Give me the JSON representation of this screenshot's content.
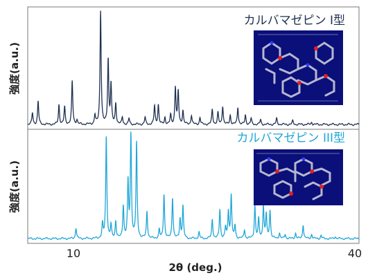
{
  "chart_data": {
    "type": "line",
    "xlabel": "2θ (deg.)",
    "xlim": [
      5,
      40
    ],
    "x_ticks": [
      "10",
      "40"
    ],
    "panels": [
      {
        "title": "カルバマゼピン I型",
        "ylabel": "強度(a.u.)",
        "color": "#1f3050",
        "series": [
          {
            "peaks": [
              {
                "x": 5.5,
                "y": 0.1
              },
              {
                "x": 6.1,
                "y": 0.2
              },
              {
                "x": 8.3,
                "y": 0.17
              },
              {
                "x": 8.9,
                "y": 0.15
              },
              {
                "x": 9.7,
                "y": 0.37
              },
              {
                "x": 10.2,
                "y": 0.04
              },
              {
                "x": 12.1,
                "y": 0.08
              },
              {
                "x": 12.7,
                "y": 0.98
              },
              {
                "x": 13.5,
                "y": 0.56
              },
              {
                "x": 13.8,
                "y": 0.34
              },
              {
                "x": 14.3,
                "y": 0.18
              },
              {
                "x": 15.0,
                "y": 0.06
              },
              {
                "x": 15.7,
                "y": 0.05
              },
              {
                "x": 17.4,
                "y": 0.06
              },
              {
                "x": 18.4,
                "y": 0.16
              },
              {
                "x": 18.8,
                "y": 0.17
              },
              {
                "x": 19.5,
                "y": 0.06
              },
              {
                "x": 20.1,
                "y": 0.08
              },
              {
                "x": 20.6,
                "y": 0.32
              },
              {
                "x": 20.9,
                "y": 0.28
              },
              {
                "x": 21.4,
                "y": 0.12
              },
              {
                "x": 22.3,
                "y": 0.08
              },
              {
                "x": 23.2,
                "y": 0.06
              },
              {
                "x": 24.5,
                "y": 0.13
              },
              {
                "x": 25.1,
                "y": 0.1
              },
              {
                "x": 25.6,
                "y": 0.16
              },
              {
                "x": 26.4,
                "y": 0.08
              },
              {
                "x": 27.2,
                "y": 0.15
              },
              {
                "x": 28.0,
                "y": 0.08
              },
              {
                "x": 28.6,
                "y": 0.05
              },
              {
                "x": 29.6,
                "y": 0.04
              },
              {
                "x": 31.3,
                "y": 0.05
              },
              {
                "x": 33.0,
                "y": 0.03
              },
              {
                "x": 35.0,
                "y": 0.02
              }
            ]
          }
        ]
      },
      {
        "title": "カルバマゼピン III型",
        "ylabel": "強度(a.u.)",
        "color": "#1fa6d8",
        "series": [
          {
            "peaks": [
              {
                "x": 10.1,
                "y": 0.1
              },
              {
                "x": 12.9,
                "y": 0.13
              },
              {
                "x": 13.3,
                "y": 0.95
              },
              {
                "x": 13.8,
                "y": 0.12
              },
              {
                "x": 14.3,
                "y": 0.16
              },
              {
                "x": 15.1,
                "y": 0.3
              },
              {
                "x": 15.6,
                "y": 0.51
              },
              {
                "x": 15.9,
                "y": 0.95
              },
              {
                "x": 16.5,
                "y": 0.88
              },
              {
                "x": 17.6,
                "y": 0.25
              },
              {
                "x": 18.9,
                "y": 0.08
              },
              {
                "x": 19.4,
                "y": 0.41
              },
              {
                "x": 20.3,
                "y": 0.38
              },
              {
                "x": 21.1,
                "y": 0.18
              },
              {
                "x": 21.4,
                "y": 0.3
              },
              {
                "x": 23.1,
                "y": 0.06
              },
              {
                "x": 24.5,
                "y": 0.18
              },
              {
                "x": 25.3,
                "y": 0.27
              },
              {
                "x": 25.9,
                "y": 0.1
              },
              {
                "x": 26.2,
                "y": 0.25
              },
              {
                "x": 26.5,
                "y": 0.4
              },
              {
                "x": 26.9,
                "y": 0.12
              },
              {
                "x": 27.9,
                "y": 0.08
              },
              {
                "x": 29.0,
                "y": 0.3
              },
              {
                "x": 29.4,
                "y": 0.18
              },
              {
                "x": 29.9,
                "y": 0.3
              },
              {
                "x": 30.2,
                "y": 0.22
              },
              {
                "x": 30.6,
                "y": 0.26
              },
              {
                "x": 31.6,
                "y": 0.05
              },
              {
                "x": 32.2,
                "y": 0.04
              },
              {
                "x": 33.3,
                "y": 0.05
              },
              {
                "x": 34.1,
                "y": 0.13
              },
              {
                "x": 35.0,
                "y": 0.04
              },
              {
                "x": 36.0,
                "y": 0.03
              },
              {
                "x": 37.5,
                "y": 0.02
              }
            ]
          }
        ]
      }
    ],
    "grid": false,
    "legend": "none"
  }
}
